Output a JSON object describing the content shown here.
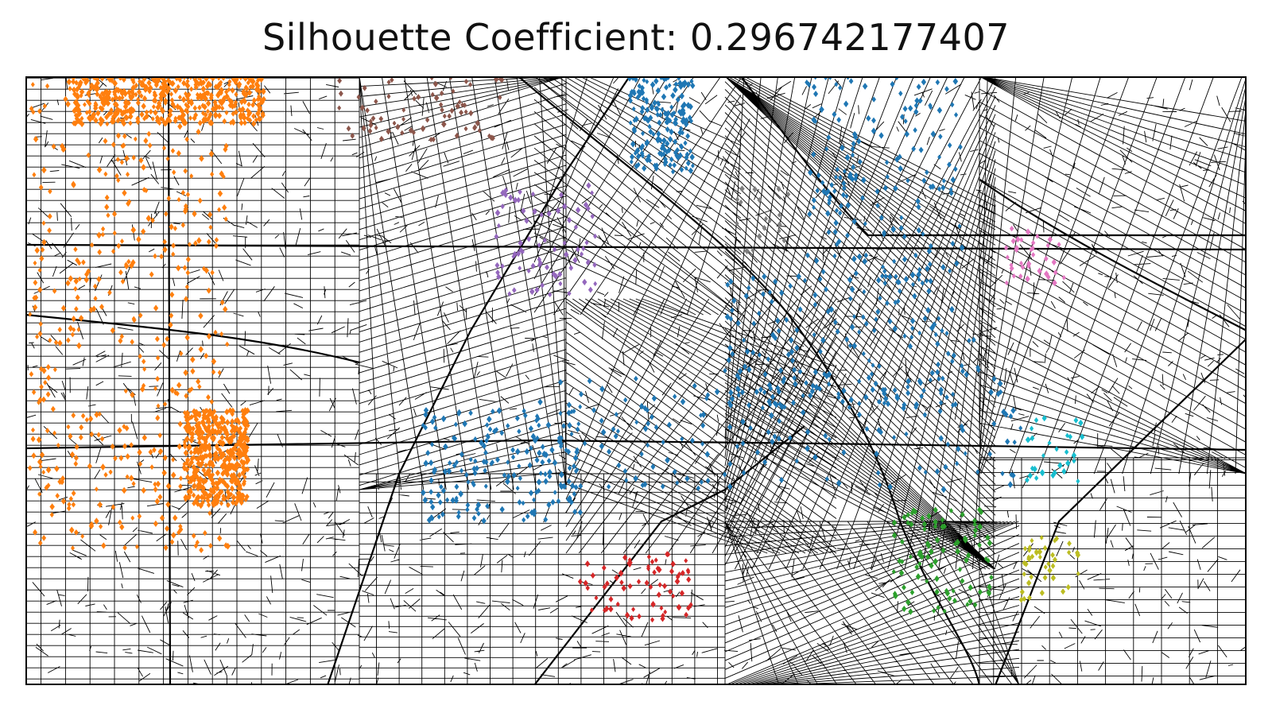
{
  "title": "Silhouette Coefficient: 0.296742177407",
  "map": {
    "type": "street-map-cluster-overlay",
    "street_color": "#000000",
    "background": "#ffffff",
    "marker": "diamond"
  },
  "clusters": [
    {
      "color": "#ff7f0e",
      "color_name": "orange",
      "region": "west"
    },
    {
      "color": "#1f77b4",
      "color_name": "blue",
      "region": "center-downtown"
    },
    {
      "color": "#8c564b",
      "color_name": "brown",
      "region": "north-top"
    },
    {
      "color": "#9467bd",
      "color_name": "purple",
      "region": "north-center"
    },
    {
      "color": "#7f7f7f",
      "color_name": "gray",
      "region": "center-north"
    },
    {
      "color": "#e377c2",
      "color_name": "pink",
      "region": "east"
    },
    {
      "color": "#17becf",
      "color_name": "cyan",
      "region": "east-south"
    },
    {
      "color": "#2ca02c",
      "color_name": "green",
      "region": "south-east"
    },
    {
      "color": "#bcbd22",
      "color_name": "olive",
      "region": "south-east"
    },
    {
      "color": "#d62728",
      "color_name": "red",
      "region": "south"
    }
  ]
}
